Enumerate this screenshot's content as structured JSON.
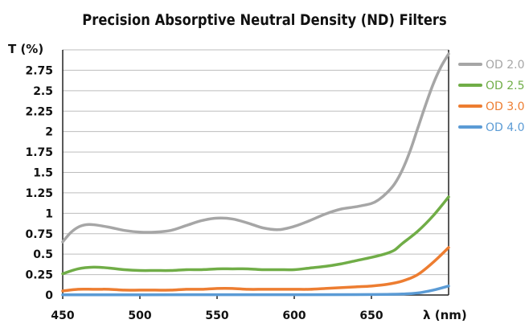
{
  "chart_data": {
    "type": "line",
    "title": "Precision Absorptive Neutral Density (ND) Filters",
    "xlabel": "λ (nm)",
    "ylabel": "T (%)",
    "xlim": [
      450,
      700
    ],
    "ylim": [
      0,
      3
    ],
    "x_ticks": [
      "450",
      "500",
      "550",
      "600",
      "650"
    ],
    "y_ticks": [
      "0",
      "0.25",
      "0.5",
      "0.75",
      "1",
      "1.25",
      "1.5",
      "1.75",
      "2",
      "2.25",
      "2.5",
      "2.75"
    ],
    "grid": "horizontal",
    "legend_position": "right",
    "series": [
      {
        "name": "OD 2.0",
        "color": "#a6a6a6",
        "points": [
          [
            450,
            0.65
          ],
          [
            455,
            0.76
          ],
          [
            460,
            0.83
          ],
          [
            465,
            0.86
          ],
          [
            470,
            0.86
          ],
          [
            480,
            0.83
          ],
          [
            490,
            0.79
          ],
          [
            500,
            0.77
          ],
          [
            510,
            0.77
          ],
          [
            520,
            0.79
          ],
          [
            530,
            0.85
          ],
          [
            540,
            0.91
          ],
          [
            550,
            0.94
          ],
          [
            560,
            0.93
          ],
          [
            570,
            0.88
          ],
          [
            580,
            0.82
          ],
          [
            590,
            0.8
          ],
          [
            600,
            0.84
          ],
          [
            610,
            0.91
          ],
          [
            620,
            0.99
          ],
          [
            630,
            1.05
          ],
          [
            640,
            1.08
          ],
          [
            650,
            1.12
          ],
          [
            655,
            1.17
          ],
          [
            660,
            1.25
          ],
          [
            665,
            1.36
          ],
          [
            670,
            1.53
          ],
          [
            675,
            1.76
          ],
          [
            680,
            2.04
          ],
          [
            685,
            2.32
          ],
          [
            690,
            2.58
          ],
          [
            695,
            2.79
          ],
          [
            700,
            2.95
          ]
        ]
      },
      {
        "name": "OD 2.5",
        "color": "#70ad47",
        "points": [
          [
            450,
            0.26
          ],
          [
            460,
            0.32
          ],
          [
            470,
            0.34
          ],
          [
            480,
            0.33
          ],
          [
            490,
            0.31
          ],
          [
            500,
            0.3
          ],
          [
            510,
            0.3
          ],
          [
            520,
            0.3
          ],
          [
            530,
            0.31
          ],
          [
            540,
            0.31
          ],
          [
            550,
            0.32
          ],
          [
            560,
            0.32
          ],
          [
            570,
            0.32
          ],
          [
            580,
            0.31
          ],
          [
            590,
            0.31
          ],
          [
            600,
            0.31
          ],
          [
            610,
            0.33
          ],
          [
            620,
            0.35
          ],
          [
            630,
            0.38
          ],
          [
            640,
            0.42
          ],
          [
            650,
            0.46
          ],
          [
            660,
            0.51
          ],
          [
            665,
            0.55
          ],
          [
            670,
            0.63
          ],
          [
            680,
            0.78
          ],
          [
            690,
            0.97
          ],
          [
            700,
            1.2
          ]
        ]
      },
      {
        "name": "OD 3.0",
        "color": "#ed7d31",
        "points": [
          [
            450,
            0.05
          ],
          [
            460,
            0.07
          ],
          [
            470,
            0.07
          ],
          [
            480,
            0.07
          ],
          [
            490,
            0.06
          ],
          [
            500,
            0.06
          ],
          [
            510,
            0.06
          ],
          [
            520,
            0.06
          ],
          [
            530,
            0.07
          ],
          [
            540,
            0.07
          ],
          [
            550,
            0.08
          ],
          [
            560,
            0.08
          ],
          [
            570,
            0.07
          ],
          [
            580,
            0.07
          ],
          [
            590,
            0.07
          ],
          [
            600,
            0.07
          ],
          [
            610,
            0.07
          ],
          [
            620,
            0.08
          ],
          [
            630,
            0.09
          ],
          [
            640,
            0.1
          ],
          [
            650,
            0.11
          ],
          [
            660,
            0.13
          ],
          [
            670,
            0.17
          ],
          [
            680,
            0.25
          ],
          [
            690,
            0.4
          ],
          [
            700,
            0.58
          ]
        ]
      },
      {
        "name": "OD 4.0",
        "color": "#5b9bd5",
        "points": [
          [
            450,
            0.003
          ],
          [
            470,
            0.003
          ],
          [
            500,
            0.003
          ],
          [
            550,
            0.004
          ],
          [
            600,
            0.004
          ],
          [
            640,
            0.005
          ],
          [
            660,
            0.008
          ],
          [
            670,
            0.012
          ],
          [
            680,
            0.025
          ],
          [
            690,
            0.06
          ],
          [
            700,
            0.11
          ]
        ]
      }
    ]
  }
}
